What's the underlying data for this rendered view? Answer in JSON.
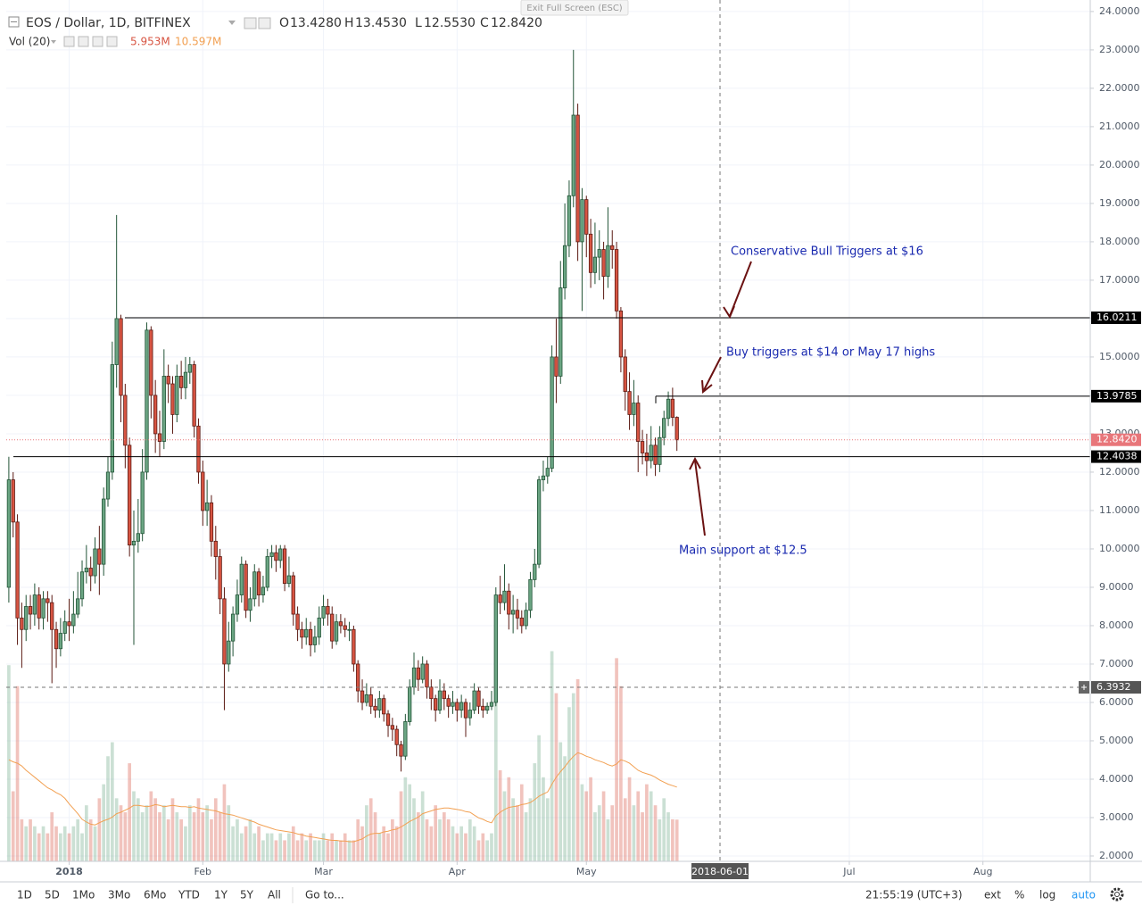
{
  "chart_data": {
    "type": "candlestick",
    "title": "EOS / Dollar, 1D, BITFINEX",
    "header": {
      "labels": [
        "O",
        "H",
        "L",
        "C"
      ],
      "values": [
        "13.4280",
        "13.4530",
        "12.5530",
        "12.8420"
      ]
    },
    "up_color": "#6ba583",
    "down_color": "#d75442",
    "open": [
      9.0,
      11.8,
      10.7,
      8.2,
      7.9,
      8.5,
      8.3,
      8.8,
      8.2,
      8.7,
      8.6,
      7.9,
      7.4,
      7.8,
      8.1,
      8.0,
      8.3,
      8.7,
      9.4,
      9.5,
      9.3,
      10.0,
      9.6,
      11.3,
      12.0,
      14.8,
      16.0,
      14.0,
      12.7,
      10.1,
      10.2,
      10.4,
      12.0,
      15.7,
      14.0,
      13.0,
      12.8,
      14.5,
      14.3,
      13.5,
      14.5,
      14.2,
      14.6,
      14.8,
      13.2,
      12.0,
      11.0,
      11.2,
      10.2,
      9.8,
      8.7,
      7.0,
      7.6,
      8.3,
      8.8,
      9.6,
      8.4,
      8.7,
      9.4,
      8.8,
      9.0,
      9.8,
      9.9,
      9.7,
      10.0,
      9.1,
      9.3,
      8.3,
      7.9,
      7.7,
      7.9,
      7.5,
      7.7,
      8.2,
      8.5,
      8.3,
      7.6,
      8.1,
      8.0,
      7.9,
      7.9,
      7.0,
      6.3,
      6.0,
      6.2,
      5.9,
      5.8,
      6.1,
      5.7,
      5.4,
      5.3,
      4.9,
      4.6,
      5.5,
      6.4,
      6.9,
      6.6,
      7.0,
      6.4,
      6.1,
      5.8,
      6.3,
      6.1,
      5.9,
      6.0,
      5.8,
      6.0,
      5.6,
      5.8,
      6.3,
      5.9,
      5.8,
      5.9,
      6.0,
      8.8,
      8.6,
      8.9,
      8.3,
      8.4,
      8.2,
      8.0,
      8.4,
      9.2,
      9.6,
      11.8,
      11.9,
      12.1,
      15.0,
      14.5,
      16.8,
      17.9,
      19.2,
      21.3,
      18.0,
      19.1,
      18.2,
      17.2,
      17.6,
      17.8,
      17.1,
      17.9,
      17.8,
      16.2,
      15.0,
      14.1,
      13.5,
      13.8,
      12.8,
      12.5,
      12.3,
      12.7,
      12.2,
      12.9,
      13.4,
      13.9,
      13.428
    ],
    "high": [
      12.4,
      12.0,
      10.9,
      8.6,
      8.8,
      8.8,
      9.1,
      9.0,
      8.9,
      8.9,
      8.8,
      8.1,
      8.2,
      8.4,
      8.7,
      8.9,
      9.4,
      9.7,
      10.1,
      9.8,
      10.3,
      10.6,
      11.6,
      12.4,
      15.4,
      18.7,
      16.1,
      14.3,
      12.9,
      11.0,
      11.3,
      12.6,
      15.9,
      15.8,
      14.4,
      13.6,
      15.2,
      14.8,
      14.5,
      14.8,
      14.9,
      15.0,
      15.0,
      14.9,
      13.4,
      12.3,
      11.8,
      11.4,
      10.6,
      10.0,
      9.0,
      8.1,
      8.5,
      9.2,
      9.8,
      9.7,
      9.0,
      9.6,
      9.5,
      9.3,
      10.0,
      10.1,
      10.1,
      10.1,
      10.1,
      9.8,
      9.4,
      8.5,
      8.1,
      8.2,
      8.1,
      8.0,
      8.5,
      8.8,
      8.7,
      8.5,
      8.3,
      8.3,
      8.2,
      8.1,
      8.0,
      7.1,
      6.6,
      6.5,
      6.4,
      6.1,
      6.3,
      6.2,
      5.8,
      5.6,
      5.4,
      5.0,
      5.7,
      6.6,
      7.3,
      7.1,
      7.2,
      7.1,
      6.6,
      6.2,
      6.6,
      6.5,
      6.2,
      6.3,
      6.1,
      6.2,
      6.1,
      6.0,
      6.5,
      6.4,
      6.1,
      6.0,
      6.3,
      9.0,
      9.3,
      9.6,
      9.1,
      8.8,
      8.7,
      8.4,
      8.6,
      9.4,
      10.0,
      11.9,
      12.3,
      12.4,
      15.3,
      16.0,
      17.5,
      19.0,
      19.6,
      23.0,
      21.6,
      19.4,
      19.2,
      18.6,
      18.5,
      18.3,
      18.0,
      18.9,
      18.3,
      18.0,
      16.3,
      15.2,
      14.6,
      14.4,
      14.0,
      13.1,
      13.0,
      13.2,
      12.9,
      13.2,
      13.6,
      14.1,
      14.2,
      13.453
    ],
    "low": [
      8.6,
      10.3,
      7.5,
      6.9,
      7.6,
      7.9,
      8.0,
      7.9,
      7.9,
      8.1,
      6.5,
      6.9,
      7.2,
      7.6,
      7.6,
      7.8,
      8.2,
      8.5,
      9.1,
      8.9,
      9.1,
      8.8,
      9.3,
      11.1,
      11.8,
      14.2,
      13.3,
      12.1,
      9.8,
      7.5,
      9.9,
      10.2,
      11.8,
      13.4,
      12.5,
      12.4,
      12.6,
      13.8,
      13.0,
      13.3,
      13.9,
      13.9,
      14.3,
      12.9,
      11.7,
      10.6,
      10.6,
      9.8,
      9.2,
      8.3,
      5.8,
      6.8,
      7.2,
      8.1,
      8.6,
      8.2,
      8.1,
      8.5,
      8.5,
      8.6,
      8.9,
      9.5,
      9.4,
      9.5,
      8.9,
      9.0,
      8.0,
      7.6,
      7.4,
      7.5,
      7.2,
      7.3,
      7.5,
      8.0,
      8.0,
      7.4,
      7.5,
      7.8,
      7.7,
      7.6,
      6.8,
      6.0,
      5.8,
      5.9,
      5.7,
      5.6,
      5.6,
      5.5,
      5.1,
      5.0,
      4.6,
      4.2,
      4.5,
      5.4,
      6.2,
      6.3,
      6.5,
      6.1,
      5.8,
      5.5,
      5.7,
      5.8,
      5.6,
      5.7,
      5.5,
      5.6,
      5.1,
      5.4,
      5.7,
      5.7,
      5.6,
      5.7,
      5.8,
      5.9,
      8.3,
      8.4,
      7.9,
      7.8,
      7.9,
      7.8,
      7.9,
      8.2,
      9.0,
      9.5,
      11.5,
      11.7,
      12.0,
      13.8,
      14.3,
      16.5,
      17.6,
      18.9,
      17.5,
      16.2,
      17.6,
      16.8,
      16.9,
      17.0,
      16.5,
      16.8,
      17.3,
      16.0,
      14.6,
      13.6,
      13.1,
      13.2,
      12.0,
      12.2,
      11.9,
      12.1,
      11.9,
      12.0,
      12.7,
      13.2,
      13.2,
      12.553
    ],
    "close": [
      11.8,
      10.7,
      8.2,
      7.9,
      8.5,
      8.3,
      8.8,
      8.2,
      8.7,
      8.6,
      7.9,
      7.4,
      7.8,
      8.1,
      8.0,
      8.3,
      8.7,
      9.4,
      9.5,
      9.3,
      10.0,
      9.6,
      11.3,
      12.0,
      14.8,
      16.0,
      14.0,
      12.7,
      10.1,
      10.2,
      10.4,
      12.0,
      15.7,
      14.0,
      13.0,
      12.8,
      14.5,
      14.3,
      13.5,
      14.5,
      14.2,
      14.6,
      14.8,
      13.2,
      12.0,
      11.0,
      11.2,
      10.2,
      9.8,
      8.7,
      7.0,
      7.6,
      8.3,
      8.8,
      9.6,
      8.4,
      8.7,
      9.4,
      8.8,
      9.0,
      9.8,
      9.9,
      9.7,
      10.0,
      9.1,
      9.3,
      8.3,
      7.9,
      7.7,
      7.9,
      7.5,
      7.7,
      8.2,
      8.5,
      8.3,
      7.6,
      8.1,
      8.0,
      7.9,
      7.9,
      7.0,
      6.3,
      6.0,
      6.2,
      5.9,
      5.8,
      6.1,
      5.7,
      5.4,
      5.3,
      4.9,
      4.6,
      5.5,
      6.4,
      6.9,
      6.6,
      7.0,
      6.4,
      6.1,
      5.8,
      6.3,
      6.1,
      5.9,
      6.0,
      5.8,
      6.0,
      5.6,
      5.8,
      6.3,
      5.9,
      5.8,
      5.9,
      6.0,
      8.8,
      8.6,
      8.9,
      8.3,
      8.4,
      8.2,
      8.0,
      8.4,
      9.2,
      9.6,
      11.8,
      11.9,
      12.1,
      15.0,
      14.5,
      16.8,
      17.9,
      19.2,
      21.3,
      18.0,
      19.1,
      18.2,
      17.2,
      17.6,
      17.8,
      17.1,
      17.9,
      17.8,
      16.2,
      15.0,
      14.1,
      13.5,
      13.8,
      12.8,
      12.5,
      12.3,
      12.7,
      12.2,
      12.9,
      13.4,
      13.9,
      13.428,
      12.842
    ],
    "volume": {
      "name": "Vol (20)",
      "value_label": "5.953M",
      "ma_label": "10.597M",
      "ma_color": "#f2a052",
      "up_color": "rgba(107,165,131,0.35)",
      "down_color": "rgba(215,84,66,0.35)",
      "values": [
        28,
        10,
        25,
        6,
        5,
        6,
        5,
        4,
        5,
        4,
        7,
        5,
        4,
        5,
        4,
        5,
        6,
        4,
        8,
        6,
        5,
        9,
        11,
        15,
        17,
        9,
        8,
        7,
        14,
        10,
        9,
        7,
        8,
        10,
        9,
        7,
        8,
        6,
        9,
        7,
        6,
        5,
        8,
        7,
        9,
        7,
        8,
        6,
        9,
        7,
        11,
        8,
        5,
        6,
        4,
        5,
        6,
        4,
        5,
        3,
        4,
        4,
        3,
        4,
        3,
        4,
        5,
        3,
        4,
        3,
        4,
        3,
        3,
        4,
        3,
        4,
        3,
        3,
        4,
        3,
        3,
        6,
        5,
        8,
        9,
        7,
        4,
        5,
        4,
        6,
        5,
        10,
        12,
        11,
        9,
        7,
        10,
        6,
        5,
        8,
        6,
        7,
        6,
        5,
        4,
        5,
        4,
        6,
        5,
        3,
        4,
        3,
        4,
        25,
        13,
        10,
        12,
        9,
        8,
        11,
        7,
        9,
        14,
        18,
        12,
        9,
        30,
        24,
        17,
        15,
        22,
        24,
        26,
        11,
        10,
        12,
        7,
        8,
        10,
        6,
        8,
        29,
        25,
        9,
        12,
        8,
        10,
        7,
        11,
        10,
        8,
        6,
        9,
        7,
        6,
        5.953
      ],
      "ma": [
        14.5,
        14.2,
        14.0,
        13.6,
        13.0,
        12.5,
        12.0,
        11.5,
        11.0,
        10.5,
        10.2,
        9.8,
        9.5,
        9.0,
        8.2,
        7.5,
        6.8,
        6.0,
        5.6,
        5.3,
        5.2,
        5.5,
        5.8,
        6.0,
        6.3,
        6.8,
        7.0,
        7.3,
        7.6,
        8.0,
        8.0,
        7.9,
        7.8,
        7.9,
        8.1,
        8.0,
        7.8,
        7.9,
        8.0,
        7.9,
        7.8,
        7.8,
        7.7,
        7.8,
        7.6,
        7.5,
        7.4,
        7.3,
        7.2,
        7.0,
        6.8,
        6.7,
        6.6,
        6.4,
        6.2,
        6.0,
        5.8,
        5.6,
        5.3,
        5.1,
        4.9,
        4.7,
        4.5,
        4.4,
        4.3,
        4.2,
        4.1,
        3.9,
        3.8,
        3.6,
        3.5,
        3.4,
        3.3,
        3.2,
        3.1,
        3.0,
        3.0,
        2.9,
        2.9,
        2.8,
        2.8,
        3.0,
        3.2,
        3.6,
        3.9,
        4.0,
        4.0,
        4.2,
        4.3,
        4.5,
        4.6,
        4.9,
        5.3,
        5.7,
        6.0,
        6.3,
        6.8,
        7.0,
        7.2,
        7.4,
        7.5,
        7.6,
        7.6,
        7.5,
        7.4,
        7.3,
        7.1,
        7.0,
        6.6,
        6.2,
        6.0,
        5.7,
        5.5,
        6.5,
        7.0,
        7.4,
        7.7,
        7.8,
        7.9,
        8.1,
        8.2,
        8.4,
        8.8,
        9.3,
        9.6,
        9.9,
        11.0,
        12.0,
        12.8,
        13.5,
        14.3,
        15.0,
        15.5,
        15.3,
        15.0,
        14.8,
        14.5,
        14.3,
        14.1,
        13.8,
        13.6,
        13.9,
        14.5,
        14.3,
        14.0,
        13.5,
        13.0,
        12.7,
        12.5,
        12.3,
        12.0,
        11.6,
        11.3,
        11.0,
        10.8,
        10.597
      ]
    },
    "ylim": [
      1.86,
      24.3
    ],
    "yticks": [
      {
        "value": 2,
        "label": "2.0000"
      },
      {
        "value": 3,
        "label": "3.0000"
      },
      {
        "value": 4,
        "label": "4.0000"
      },
      {
        "value": 5,
        "label": "5.0000"
      },
      {
        "value": 6,
        "label": "6.0000"
      },
      {
        "value": 7,
        "label": "7.0000"
      },
      {
        "value": 8,
        "label": "8.0000"
      },
      {
        "value": 9,
        "label": "9.0000"
      },
      {
        "value": 10,
        "label": "10.0000"
      },
      {
        "value": 11,
        "label": "11.0000"
      },
      {
        "value": 12,
        "label": "12.0000"
      },
      {
        "value": 13,
        "label": "13.0000"
      },
      {
        "value": 14,
        "label": "14.0000"
      },
      {
        "value": 15,
        "label": "15.0000"
      },
      {
        "value": 16,
        "label": "16.0000"
      },
      {
        "value": 17,
        "label": "17.0000"
      },
      {
        "value": 18,
        "label": "18.0000"
      },
      {
        "value": 19,
        "label": "19.0000"
      },
      {
        "value": 20,
        "label": "20.0000"
      },
      {
        "value": 21,
        "label": "21.0000"
      },
      {
        "value": 22,
        "label": "22.0000"
      },
      {
        "value": 23,
        "label": "23.0000"
      },
      {
        "value": 24,
        "label": "24.0000"
      }
    ],
    "xlim": [
      -0.6,
      250.9
    ],
    "xticks": [
      {
        "value": 14,
        "label": "2018"
      },
      {
        "value": 45,
        "label": "Feb"
      },
      {
        "value": 73,
        "label": "Mar"
      },
      {
        "value": 104,
        "label": "Apr"
      },
      {
        "value": 134,
        "label": "May"
      },
      {
        "value": 195,
        "label": "Jul"
      },
      {
        "value": 226,
        "label": "Aug"
      }
    ],
    "grid": true,
    "levels": [
      {
        "value": 16.0211,
        "label": "16.0211"
      },
      {
        "value": 13.9785,
        "label": "13.9785"
      },
      {
        "value": 12.4038,
        "label": "12.4038"
      }
    ],
    "level_color": "#000000",
    "current_price": {
      "value": 12.842,
      "label": "12.8420",
      "color": "#e8767a"
    },
    "crosshair": {
      "y": {
        "value": 6.3932,
        "label": "6.3932"
      },
      "x": {
        "value": 165,
        "label": "2018-06-01"
      }
    },
    "annotations": [
      "Conservative Bull Triggers at $16",
      "Buy triggers at $14 or May 17 highs",
      "Main support at $12.5"
    ]
  },
  "toolbar": {
    "exit": "Exit Full Screen (ESC)",
    "ranges": [
      "1D",
      "5D",
      "1Mo",
      "3Mo",
      "6Mo",
      "YTD",
      "1Y",
      "5Y",
      "All"
    ],
    "goto": "Go to...",
    "time": "21:55:19 (UTC+3)",
    "options": [
      "ext",
      "%",
      "log",
      "auto"
    ]
  }
}
